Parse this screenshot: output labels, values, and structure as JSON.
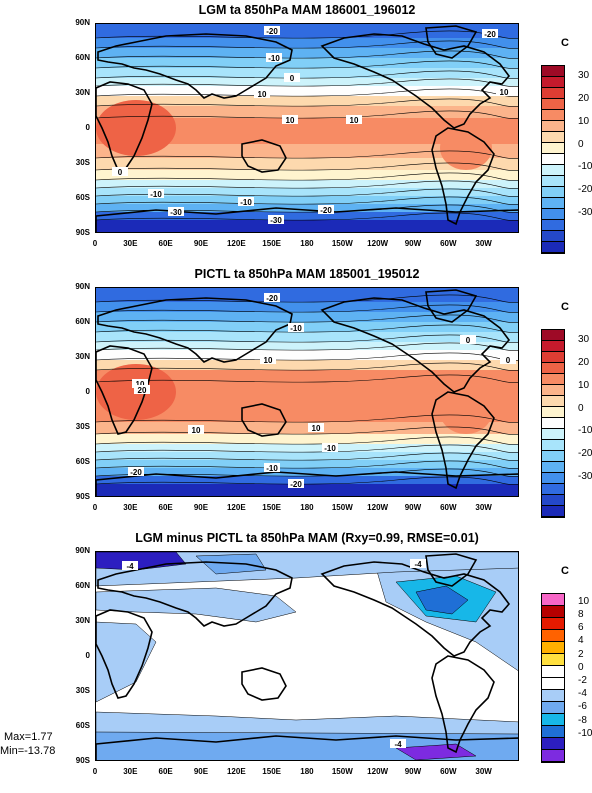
{
  "panels": [
    {
      "title": "LGM ta 850hPa MAM 186001_196012",
      "unit": "C",
      "colorbar": {
        "labels": [
          "30",
          "20",
          "10",
          "0",
          "-10",
          "-20",
          "-30"
        ],
        "colors": [
          "#9e0a26",
          "#c51a2c",
          "#de3d33",
          "#ee6346",
          "#f78b64",
          "#fbb48b",
          "#fdd9ae",
          "#fff4cf",
          "#fefefe",
          "#cdf3fb",
          "#a8e4fb",
          "#81cff7",
          "#5eb2f3",
          "#4290ec",
          "#306be0",
          "#2448c9",
          "#1b2ab8"
        ]
      },
      "contour_labels": [
        "-20",
        "-20",
        "-10",
        "0",
        "10",
        "10",
        "10",
        "10",
        "0",
        "-10",
        "-10",
        "-30",
        "-20",
        "-30"
      ]
    },
    {
      "title": "PICTL ta 850hPa MAM 185001_195012",
      "unit": "C",
      "colorbar": {
        "labels": [
          "30",
          "20",
          "10",
          "0",
          "-10",
          "-20",
          "-30"
        ],
        "colors": [
          "#9e0a26",
          "#c51a2c",
          "#de3d33",
          "#ee6346",
          "#f78b64",
          "#fbb48b",
          "#fdd9ae",
          "#fff4cf",
          "#fefefe",
          "#cdf3fb",
          "#a8e4fb",
          "#81cff7",
          "#5eb2f3",
          "#4290ec",
          "#306be0",
          "#2448c9",
          "#1b2ab8"
        ]
      },
      "contour_labels": [
        "-20",
        "-10",
        "0",
        "10",
        "10",
        "20",
        "10",
        "10",
        "0",
        "-10",
        "-20",
        "-10",
        "-20"
      ]
    },
    {
      "title": "LGM minus PICTL ta 850hPa MAM (Rxy=0.99, RMSE=0.01)",
      "unit": "C",
      "colorbar": {
        "labels": [
          "10",
          "8",
          "6",
          "4",
          "2",
          "0",
          "-2",
          "-4",
          "-6",
          "-8",
          "-10"
        ],
        "colors": [
          "#f766c7",
          "#b60000",
          "#e51a00",
          "#ff6200",
          "#ffb000",
          "#ffe040",
          "#ffffff",
          "#ffffff",
          "#a8cdf7",
          "#6faaf0",
          "#17b7e8",
          "#1f6fd6",
          "#2c1ec0",
          "#7d2be0"
        ]
      },
      "contour_labels": [
        "-4",
        "-4",
        "-4"
      ]
    }
  ],
  "lat_labels": [
    "90N",
    "60N",
    "30N",
    "0",
    "30S",
    "60S",
    "90S"
  ],
  "lon_labels": [
    "0",
    "30E",
    "60E",
    "90E",
    "120E",
    "150E",
    "180",
    "150W",
    "120W",
    "90W",
    "60W",
    "30W"
  ],
  "stats": {
    "max": "Max=1.77",
    "min": "Min=-13.78"
  }
}
